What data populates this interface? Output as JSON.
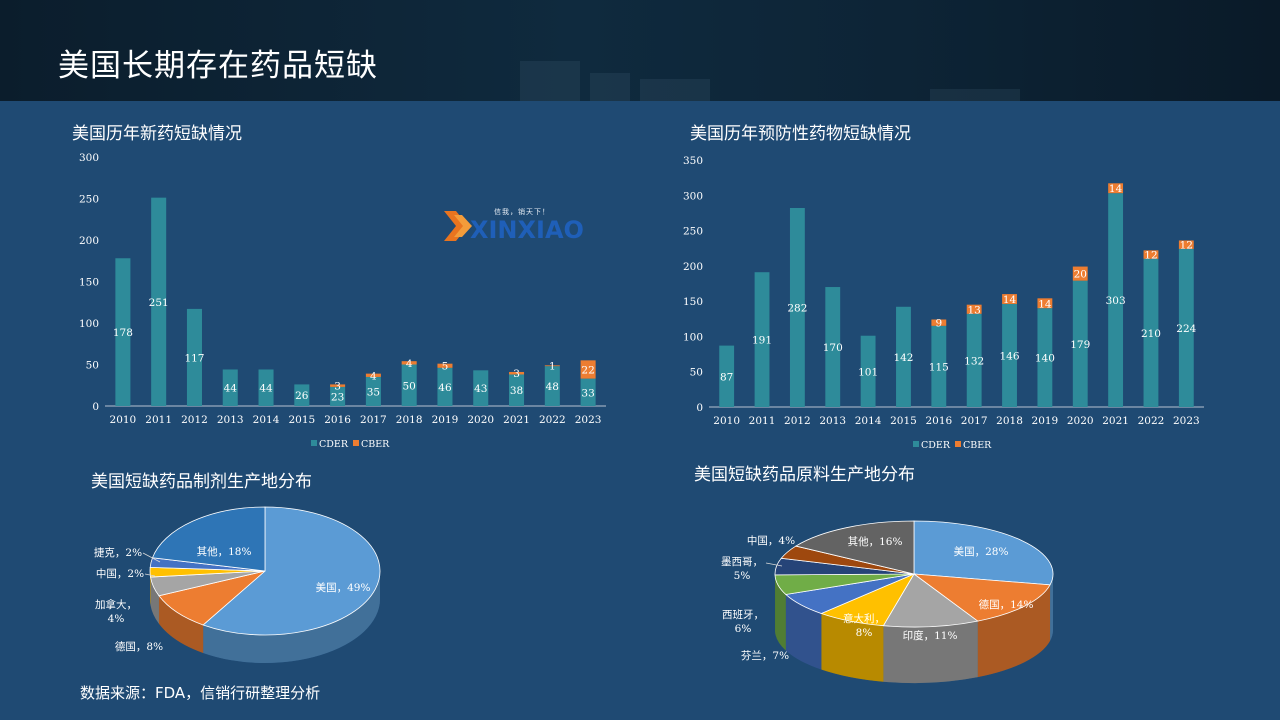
{
  "page": {
    "title": "美国长期存在药品短缺",
    "source_note": "数据来源：FDA，信销行研整理分析"
  },
  "logo": {
    "slogan": "信我，销天下！",
    "word": "XINXIAO",
    "icon": "chevron-logo-icon"
  },
  "colors": {
    "cder": "#2e8b9a",
    "cber": "#ed7d31",
    "axis": "#b7c3d0"
  },
  "chart_data": [
    {
      "type": "bar",
      "stacked": true,
      "title": "美国历年新药短缺情况",
      "categories": [
        "2010",
        "2011",
        "2012",
        "2013",
        "2014",
        "2015",
        "2016",
        "2017",
        "2018",
        "2019",
        "2020",
        "2021",
        "2022",
        "2023"
      ],
      "series": [
        {
          "name": "CDER",
          "values": [
            178,
            251,
            117,
            44,
            44,
            26,
            23,
            35,
            50,
            46,
            43,
            38,
            48,
            33
          ]
        },
        {
          "name": "CBER",
          "values": [
            null,
            null,
            null,
            null,
            null,
            null,
            3,
            4,
            4,
            5,
            null,
            3,
            1,
            22
          ]
        }
      ],
      "ylim": [
        0,
        300
      ],
      "yticks": [
        0,
        50,
        100,
        150,
        200,
        250,
        300
      ],
      "legend": "bottom"
    },
    {
      "type": "bar",
      "stacked": true,
      "title": "美国历年预防性药物短缺情况",
      "categories": [
        "2010",
        "2011",
        "2012",
        "2013",
        "2014",
        "2015",
        "2016",
        "2017",
        "2018",
        "2019",
        "2020",
        "2021",
        "2022",
        "2023"
      ],
      "series": [
        {
          "name": "CDER",
          "values": [
            87,
            191,
            282,
            170,
            101,
            142,
            115,
            132,
            146,
            140,
            179,
            303,
            210,
            224
          ]
        },
        {
          "name": "CBER",
          "values": [
            null,
            null,
            null,
            null,
            null,
            null,
            9,
            13,
            14,
            14,
            20,
            14,
            12,
            12
          ]
        }
      ],
      "ylim": [
        0,
        350
      ],
      "yticks": [
        0,
        50,
        100,
        150,
        200,
        250,
        300,
        350
      ],
      "legend": "bottom"
    },
    {
      "type": "pie",
      "title": "美国短缺药品制剂生产地分布",
      "slices": [
        {
          "label": "美国",
          "pct": "49%",
          "value": 49,
          "color": "#5b9bd5"
        },
        {
          "label": "德国",
          "pct": "8%",
          "value": 8,
          "color": "#ed7d31"
        },
        {
          "label": "加拿大",
          "pct": "4%",
          "value": 4,
          "color": "#a5a5a5"
        },
        {
          "label": "中国",
          "pct": "2%",
          "value": 2,
          "color": "#ffc000"
        },
        {
          "label": "捷克",
          "pct": "2%",
          "value": 2,
          "color": "#4472c4"
        },
        {
          "label": "其他",
          "pct": "18%",
          "value": 18,
          "color": "#2e75b6"
        }
      ]
    },
    {
      "type": "pie",
      "title": "美国短缺药品原料生产地分布",
      "slices": [
        {
          "label": "美国",
          "pct": "28%",
          "value": 28,
          "color": "#5b9bd5"
        },
        {
          "label": "德国",
          "pct": "14%",
          "value": 14,
          "color": "#ed7d31"
        },
        {
          "label": "印度",
          "pct": "11%",
          "value": 11,
          "color": "#a5a5a5"
        },
        {
          "label": "意大利",
          "pct": "8%",
          "value": 8,
          "color": "#ffc000"
        },
        {
          "label": "芬兰",
          "pct": "7%",
          "value": 7,
          "color": "#4472c4"
        },
        {
          "label": "西班牙",
          "pct": "6%",
          "value": 6,
          "color": "#70ad47"
        },
        {
          "label": "墨西哥",
          "pct": "5%",
          "value": 5,
          "color": "#264478"
        },
        {
          "label": "中国",
          "pct": "4%",
          "value": 4,
          "color": "#9e480e"
        },
        {
          "label": "其他",
          "pct": "16%",
          "value": 16,
          "color": "#636363"
        }
      ]
    }
  ]
}
